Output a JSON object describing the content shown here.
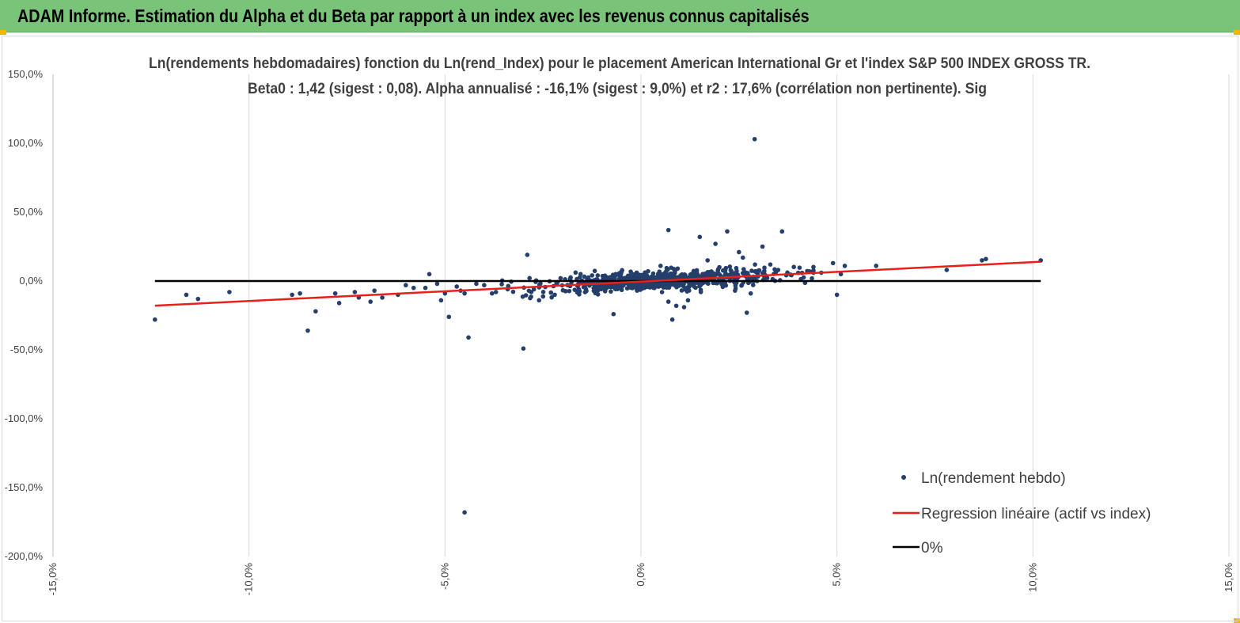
{
  "header": {
    "title": "ADAM Informe. Estimation du Alpha et du Beta par rapport à un index avec les revenus connus capitalisés",
    "bg_color": "#7ac47a",
    "corner_color": "#f2b705"
  },
  "chart_data": {
    "type": "scatter",
    "title_line1": "Ln(rendements hebdomadaires) fonction du Ln(rend_Index) pour le placement American International Gr et l'index S&P 500 INDEX GROSS TR.",
    "title_line2": "Beta0 : 1,42 (sigest : 0,08). Alpha annualisé : -16,1% (sigest : 9,0%) et r2 : 17,6% (corrélation non pertinente). Sig",
    "xlim": [
      -15,
      15
    ],
    "ylim": [
      -200,
      150
    ],
    "x_ticks": [
      -15,
      -10,
      -5,
      0,
      5,
      10,
      15
    ],
    "x_tick_labels": [
      "-15,0%",
      "-10,0%",
      "-5,0%",
      "0,0%",
      "5,0%",
      "10,0%",
      "15,0%"
    ],
    "y_ticks": [
      150,
      100,
      50,
      0,
      -50,
      -100,
      -150,
      -200
    ],
    "y_tick_labels": [
      "150,0%",
      "100,0%",
      "50,0%",
      "0,0%",
      "-50,0%",
      "-100,0%",
      "-150,0%",
      "-200,0%"
    ],
    "grid": "vertical",
    "legend_position": "bottom-right",
    "series": [
      {
        "name": "Ln(rendement hebdo)",
        "kind": "scatter",
        "color": "#243f6b",
        "outliers": [
          [
            -12.4,
            -28
          ],
          [
            -11.6,
            -10
          ],
          [
            -11.3,
            -13
          ],
          [
            -10.5,
            -8
          ],
          [
            -8.9,
            -10
          ],
          [
            -8.7,
            -9
          ],
          [
            -8.5,
            -36
          ],
          [
            -8.3,
            -22
          ],
          [
            -7.8,
            -9
          ],
          [
            -7.7,
            -16
          ],
          [
            -7.3,
            -8
          ],
          [
            -7.2,
            -12
          ],
          [
            -6.9,
            -15
          ],
          [
            -6.8,
            -7
          ],
          [
            -6.6,
            -12
          ],
          [
            -6.2,
            -10
          ],
          [
            -6.0,
            -3
          ],
          [
            -5.8,
            -5
          ],
          [
            -5.5,
            -5
          ],
          [
            -5.4,
            5
          ],
          [
            -5.2,
            -2
          ],
          [
            -5.1,
            -14
          ],
          [
            -5.0,
            -9
          ],
          [
            -4.9,
            -26
          ],
          [
            -4.7,
            -4
          ],
          [
            -4.6,
            -7
          ],
          [
            -4.5,
            -9
          ],
          [
            -4.4,
            -41
          ],
          [
            -4.2,
            -2
          ],
          [
            -4.0,
            -3
          ],
          [
            -3.8,
            -9
          ],
          [
            -3.7,
            -8
          ],
          [
            -3.4,
            -6
          ],
          [
            -3.0,
            -49
          ],
          [
            -2.9,
            19
          ],
          [
            -2.8,
            -8
          ],
          [
            -2.6,
            -14
          ],
          [
            -2.2,
            -10
          ],
          [
            -1.6,
            -3
          ],
          [
            -0.7,
            -24
          ],
          [
            -0.3,
            -4
          ],
          [
            -0.1,
            -7
          ],
          [
            0.5,
            11
          ],
          [
            0.7,
            -15
          ],
          [
            0.7,
            37
          ],
          [
            0.8,
            -28
          ],
          [
            0.9,
            -18
          ],
          [
            1.1,
            -19
          ],
          [
            1.2,
            -14
          ],
          [
            1.4,
            5
          ],
          [
            1.5,
            32
          ],
          [
            1.7,
            15
          ],
          [
            1.9,
            27
          ],
          [
            2.0,
            10
          ],
          [
            2.2,
            36
          ],
          [
            2.4,
            -7
          ],
          [
            2.5,
            21
          ],
          [
            2.6,
            17
          ],
          [
            2.7,
            -23
          ],
          [
            2.8,
            -9
          ],
          [
            2.9,
            103
          ],
          [
            3.1,
            25
          ],
          [
            3.3,
            12
          ],
          [
            3.5,
            8
          ],
          [
            3.6,
            36
          ],
          [
            4.3,
            7
          ],
          [
            4.6,
            6
          ],
          [
            4.9,
            13
          ],
          [
            5.0,
            -10
          ],
          [
            5.1,
            5
          ],
          [
            5.2,
            11
          ],
          [
            6.0,
            11
          ],
          [
            7.8,
            8
          ],
          [
            8.7,
            15
          ],
          [
            8.8,
            16
          ],
          [
            10.2,
            15
          ]
        ],
        "cloud": {
          "count": 720,
          "x_mean": 0.5,
          "x_sd": 1.55,
          "x_range": [
            -4.3,
            4.4
          ],
          "noise_sd": 3.4,
          "noise_max": 13
        },
        "large_outlier": [
          -4.5,
          -168
        ]
      },
      {
        "name": "Regression linéaire (actif vs index)",
        "kind": "line",
        "color": "#e8201a",
        "x": [
          -12.4,
          10.2
        ],
        "y": [
          -17.9,
          14.0
        ]
      },
      {
        "name": "0%",
        "kind": "line",
        "color": "#000000",
        "x": [
          -12.4,
          10.2
        ],
        "y": [
          0,
          0
        ]
      }
    ]
  }
}
